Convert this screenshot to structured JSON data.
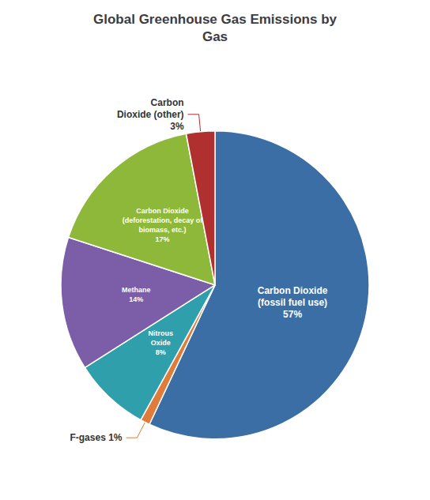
{
  "chart_data": {
    "type": "pie",
    "title": "Global Greenhouse Gas Emissions by\nGas",
    "values": [
      57,
      1,
      8,
      14,
      17,
      3
    ],
    "value_labels": [
      "Carbon Dioxide\n(fossil fuel use)\n57%",
      "F-gases 1%",
      "Nitrous\nOxide\n8%",
      "Methane\n14%",
      "Carbon Dioxide\n(deforestation, decay of\nbiomass, etc.)\n17%",
      "Carbon\nDioxide (other)\n3%"
    ],
    "colors": [
      "#3B6EA5",
      "#E07B39",
      "#2E9FAB",
      "#7B5EA7",
      "#8DB83A",
      "#B03030"
    ],
    "data_labels": true
  }
}
